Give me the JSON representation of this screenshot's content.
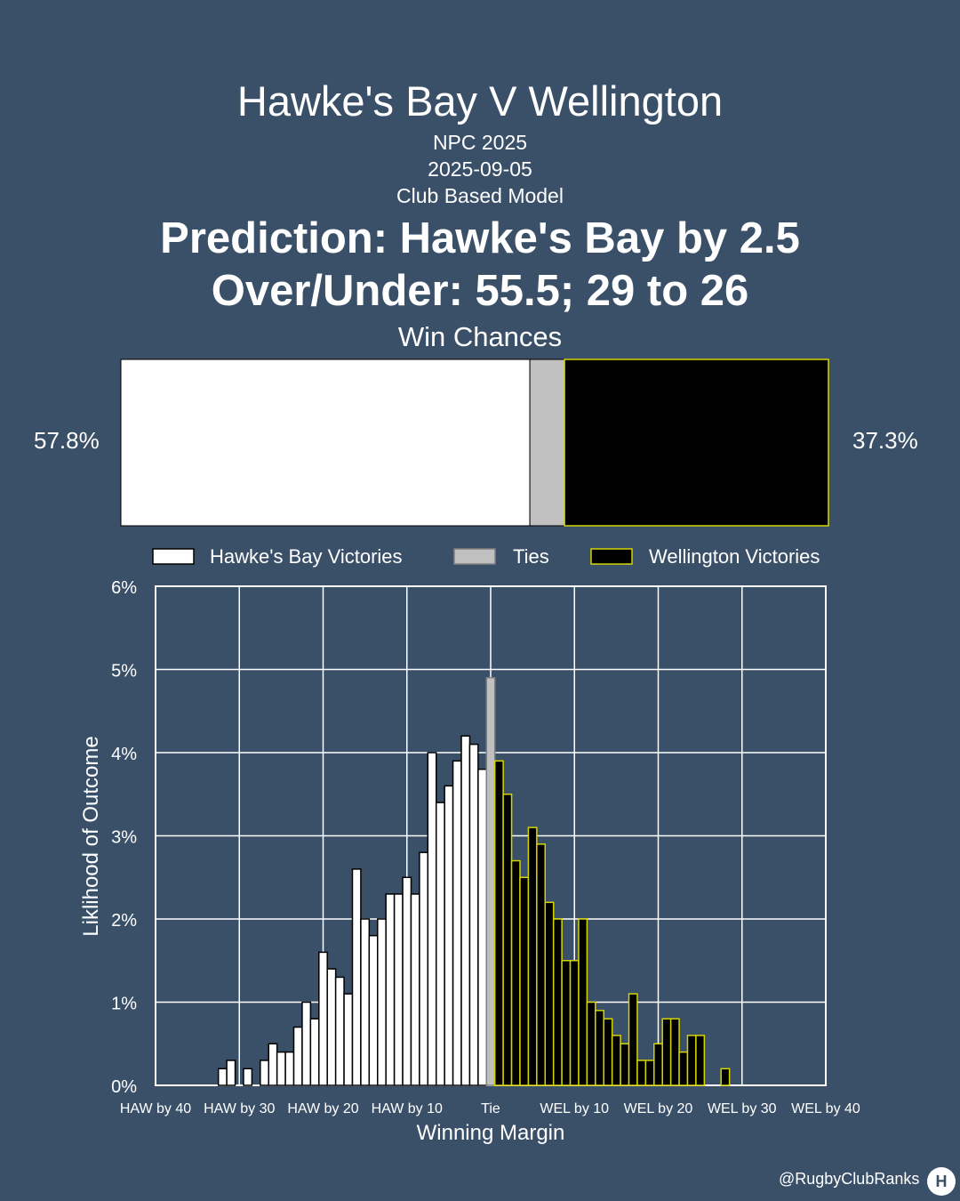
{
  "header": {
    "title": "Hawke's Bay V Wellington",
    "competition": "NPC 2025",
    "date": "2025-09-05",
    "model": "Club Based Model",
    "prediction": "Prediction: Hawke's Bay by 2.5",
    "over_under": "Over/Under: 55.5; 29 to 26",
    "win_chances_title": "Win Chances"
  },
  "win_chances": {
    "home_pct_label": "57.8%",
    "away_pct_label": "37.3%",
    "home": 57.8,
    "tie": 4.9,
    "away": 37.3
  },
  "legend": {
    "home": "Hawke's Bay Victories",
    "tie": "Ties",
    "away": "Wellington Victories"
  },
  "colors": {
    "background": "#3a5068",
    "home_fill": "#ffffff",
    "tie_fill": "#c0c0c0",
    "away_fill": "#000000",
    "away_edge": "#d4d400"
  },
  "chart_data": {
    "type": "bar",
    "xlabel": "Winning Margin",
    "ylabel": "Liklihood of Outcome",
    "xlim": [
      -40,
      40
    ],
    "ylim": [
      0,
      6
    ],
    "xticks": [
      {
        "value": -40,
        "label": "HAW by 40"
      },
      {
        "value": -30,
        "label": "HAW by 30"
      },
      {
        "value": -20,
        "label": "HAW by 20"
      },
      {
        "value": -10,
        "label": "HAW by 10"
      },
      {
        "value": 0,
        "label": "Tie"
      },
      {
        "value": 10,
        "label": "WEL by 10"
      },
      {
        "value": 20,
        "label": "WEL by 20"
      },
      {
        "value": 30,
        "label": "WEL by 30"
      },
      {
        "value": 40,
        "label": "WEL by 40"
      }
    ],
    "yticks": [
      {
        "value": 0,
        "label": "0%"
      },
      {
        "value": 1,
        "label": "1%"
      },
      {
        "value": 2,
        "label": "2%"
      },
      {
        "value": 3,
        "label": "3%"
      },
      {
        "value": 4,
        "label": "4%"
      },
      {
        "value": 5,
        "label": "5%"
      },
      {
        "value": 6,
        "label": "6%"
      }
    ],
    "grid": true,
    "series": [
      {
        "name": "Hawke's Bay Victories",
        "margins": [
          -32,
          -31,
          -29,
          -27,
          -26,
          -25,
          -24,
          -23,
          -22,
          -21,
          -20,
          -19,
          -18,
          -17,
          -16,
          -15,
          -14,
          -13,
          -12,
          -11,
          -10,
          -9,
          -8,
          -7,
          -6,
          -5,
          -4,
          -3,
          -2,
          -1
        ],
        "values": [
          0.2,
          0.3,
          0.2,
          0.3,
          0.5,
          0.4,
          0.4,
          0.7,
          1.0,
          0.8,
          1.6,
          1.4,
          1.3,
          1.1,
          2.6,
          2.0,
          1.8,
          2.0,
          2.3,
          2.3,
          2.5,
          2.3,
          2.8,
          4.0,
          3.4,
          3.6,
          3.9,
          4.2,
          4.1,
          3.8
        ]
      },
      {
        "name": "Ties",
        "margins": [
          0
        ],
        "values": [
          4.9
        ]
      },
      {
        "name": "Wellington Victories",
        "margins": [
          1,
          2,
          3,
          4,
          5,
          6,
          7,
          8,
          9,
          10,
          11,
          12,
          13,
          14,
          15,
          16,
          17,
          18,
          19,
          20,
          21,
          22,
          23,
          24,
          25,
          28
        ],
        "values": [
          3.9,
          3.5,
          2.7,
          2.5,
          3.1,
          2.9,
          2.2,
          2.0,
          1.5,
          1.5,
          2.0,
          1.0,
          0.9,
          0.8,
          0.6,
          0.5,
          1.1,
          0.3,
          0.3,
          0.5,
          0.8,
          0.8,
          0.4,
          0.6,
          0.6,
          0.2
        ]
      }
    ]
  },
  "footer": {
    "handle": "@RugbyClubRanks",
    "logo_text": "H"
  }
}
